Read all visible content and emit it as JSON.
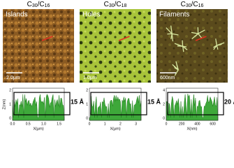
{
  "panels": [
    {
      "title": {
        "c1": "C",
        "n1": "30",
        "c2": "/C",
        "n2": "16"
      },
      "label": "Islands",
      "scale_bar": "2.0μm",
      "profile": {
        "y_label": "Z(nm)",
        "x_label": "X(μm)",
        "xticks": [
          "0.0",
          "0.5",
          "1.0",
          "1.5"
        ],
        "yticks": [
          "2",
          "1",
          "0"
        ],
        "height": "15 Å"
      }
    },
    {
      "title": {
        "c1": "C",
        "n1": "30",
        "c2": "/C",
        "n2": "18"
      },
      "label": "Holes",
      "scale_bar": "1.0μm",
      "profile": {
        "x_label": "X(μm)",
        "xticks": [
          "0",
          "1",
          "2",
          "3"
        ],
        "yticks": [
          "2",
          "1",
          "0"
        ],
        "height": "15 Å"
      }
    },
    {
      "title": {
        "c1": "C",
        "n1": "30",
        "c2": "/C",
        "n2": "16"
      },
      "label": "Filaments",
      "scale_bar": "600nm",
      "profile": {
        "x_label": "X(nm)",
        "xticks": [
          "0",
          "200",
          "400",
          "600"
        ],
        "yticks": [
          "4",
          "2",
          "0"
        ],
        "height": "20 Å"
      }
    }
  ]
}
